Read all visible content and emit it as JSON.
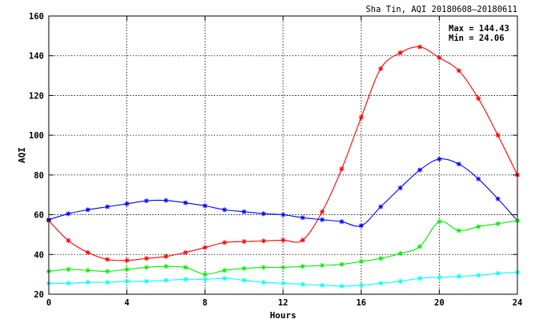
{
  "chart_data": {
    "type": "line",
    "title": "Sha Tin, AQI 20180608–20180611",
    "xlabel": "Hours",
    "ylabel": "AQI",
    "xlim": [
      0,
      24
    ],
    "ylim": [
      20,
      160
    ],
    "xticks": [
      0,
      4,
      8,
      12,
      16,
      20,
      24
    ],
    "yticks": [
      20,
      40,
      60,
      80,
      100,
      120,
      140,
      160
    ],
    "grid": true,
    "stats": [
      "Max = 144.43",
      "Min =  24.06"
    ],
    "x": [
      0,
      1,
      2,
      3,
      4,
      5,
      6,
      7,
      8,
      9,
      10,
      11,
      12,
      13,
      14,
      15,
      16,
      17,
      18,
      19,
      20,
      21,
      22,
      23,
      24
    ],
    "series": [
      {
        "color": "#ff0000",
        "values": [
          57,
          47,
          41,
          37.5,
          37,
          38,
          39,
          41,
          43.5,
          46,
          46.5,
          46.8,
          47.2,
          47.2,
          61.5,
          83,
          109,
          133.5,
          141.5,
          144.43,
          139,
          132.5,
          118.5,
          100,
          80
        ]
      },
      {
        "color": "#0000ff",
        "values": [
          57.5,
          60.5,
          62.5,
          64,
          65.5,
          67,
          67.2,
          66,
          64.5,
          62.5,
          61.5,
          60.5,
          60,
          58.5,
          57.5,
          56.5,
          54.5,
          64,
          73.5,
          82.5,
          88,
          85.5,
          78,
          68,
          57
        ]
      },
      {
        "color": "#00ee00",
        "values": [
          31.5,
          32.5,
          32,
          31.5,
          32.5,
          33.5,
          34,
          33.5,
          30,
          32,
          33,
          33.5,
          33.5,
          34,
          34.5,
          35,
          36.5,
          38,
          40.5,
          44,
          56.5,
          52,
          54,
          55.5,
          57
        ]
      },
      {
        "color": "#00ffff",
        "values": [
          25.5,
          25.5,
          26,
          26,
          26.5,
          26.5,
          27,
          27.5,
          27.5,
          28,
          27,
          26,
          25.5,
          25,
          24.5,
          24.06,
          24.5,
          25.5,
          26.5,
          28,
          28.5,
          29,
          29.5,
          30.5,
          31
        ]
      }
    ]
  }
}
